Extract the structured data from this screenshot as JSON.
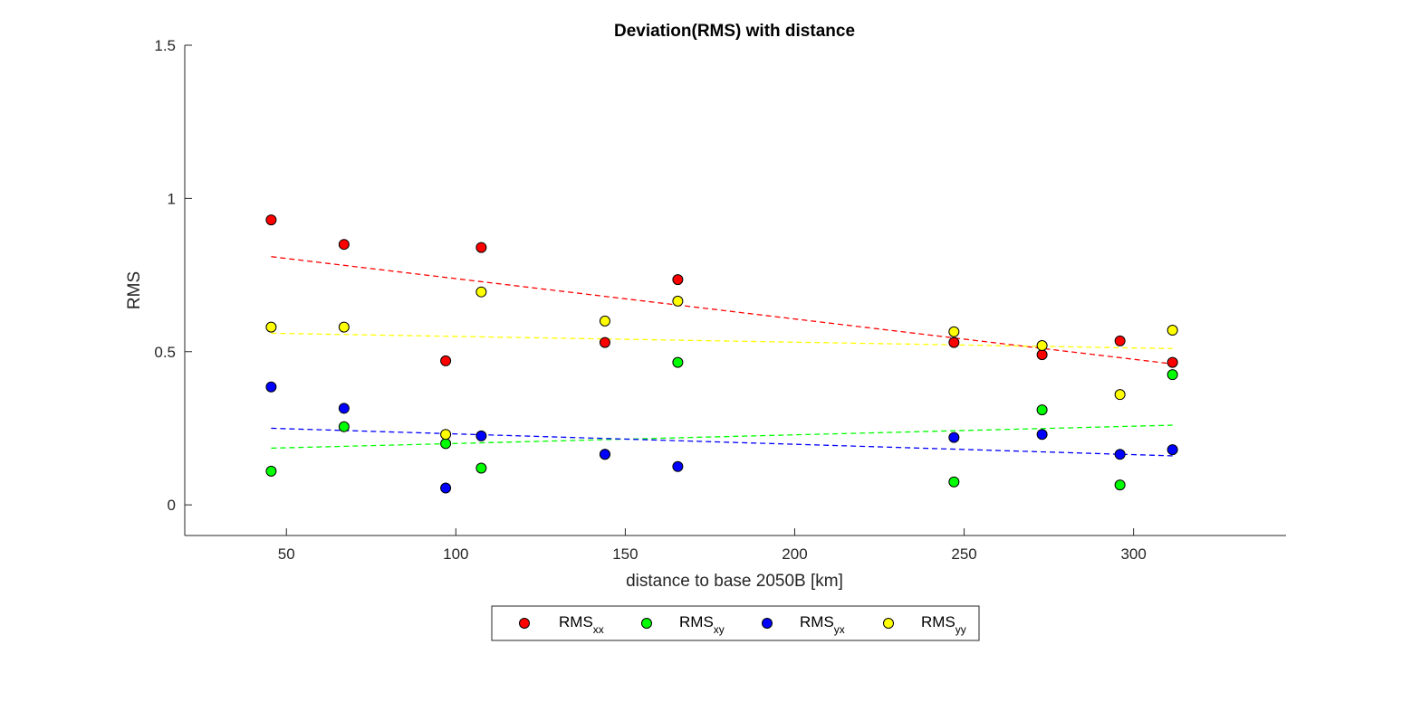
{
  "chart_data": {
    "type": "scatter",
    "title": "Deviation(RMS) with distance",
    "xlabel": "distance to base 2050B [km]",
    "ylabel": "RMS",
    "xlim": [
      20,
      345
    ],
    "ylim": [
      -0.1,
      1.5
    ],
    "xticks": [
      50,
      100,
      150,
      200,
      250,
      300
    ],
    "yticks": [
      0,
      0.5,
      1,
      1.5
    ],
    "xtick_labels": [
      "50",
      "100",
      "150",
      "200",
      "250",
      "300"
    ],
    "ytick_labels": [
      "0",
      "0.5",
      "1",
      "1.5"
    ],
    "grid": false,
    "legend_position": "bottom-outside",
    "x": [
      45.5,
      67,
      97,
      107.5,
      144,
      165.5,
      247,
      273,
      296,
      311.5
    ],
    "series": [
      {
        "name": "RMS",
        "subscript": "xx",
        "color": "#ff0000",
        "values": [
          0.93,
          0.85,
          0.47,
          0.84,
          0.53,
          0.735,
          0.53,
          0.49,
          0.535,
          0.465
        ],
        "trend": [
          0.81,
          0.46
        ]
      },
      {
        "name": "RMS",
        "subscript": "xy",
        "color": "#00ff00",
        "values": [
          0.11,
          0.255,
          0.2,
          0.12,
          0.165,
          0.465,
          0.075,
          0.31,
          0.065,
          0.425
        ],
        "trend": [
          0.185,
          0.26
        ]
      },
      {
        "name": "RMS",
        "subscript": "yx",
        "color": "#0000ff",
        "values": [
          0.385,
          0.315,
          0.055,
          0.225,
          0.165,
          0.125,
          0.22,
          0.23,
          0.165,
          0.18
        ],
        "trend": [
          0.25,
          0.16
        ]
      },
      {
        "name": "RMS",
        "subscript": "yy",
        "color": "#ffff00",
        "values": [
          0.58,
          0.58,
          0.23,
          0.695,
          0.6,
          0.665,
          0.565,
          0.52,
          0.36,
          0.57
        ],
        "trend": [
          0.56,
          0.51
        ]
      }
    ]
  }
}
